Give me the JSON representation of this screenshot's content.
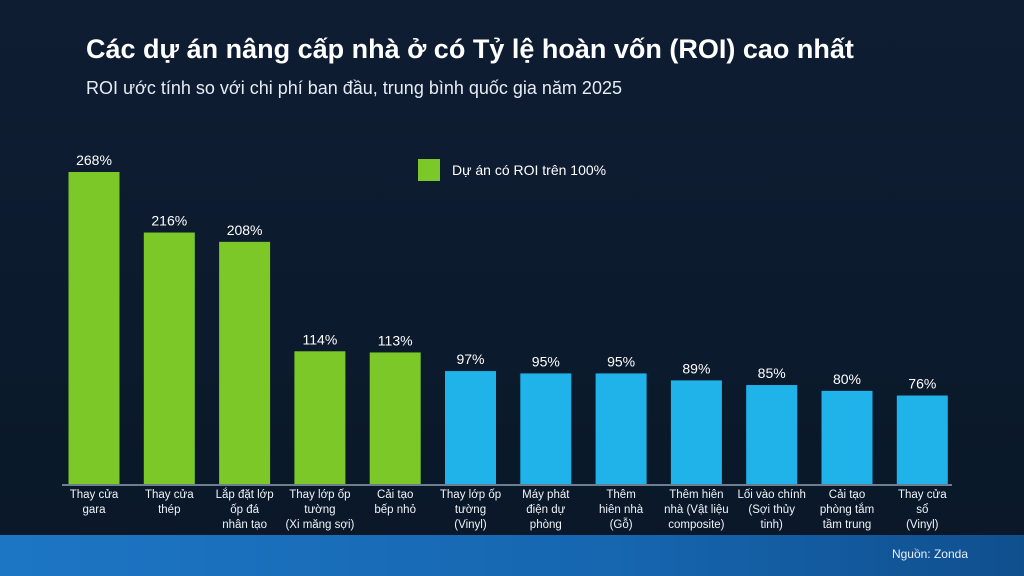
{
  "chart_data": {
    "type": "bar",
    "title": "Các dự án nâng cấp nhà ở có Tỷ lệ hoàn vốn (ROI) cao nhất",
    "subtitle": "ROI ước tính so với chi phí ban đầu, trung bình quốc gia năm 2025",
    "categories": [
      "Thay cửa\ngara",
      "Thay cửa\nthép",
      "Lắp đặt lớp\nốp đá\nnhân tạo",
      "Thay lớp ốp\ntường\n(Xi măng sợi)",
      "Cải tạo\nbếp nhỏ",
      "Thay lớp ốp\ntường\n(Vinyl)",
      "Máy phát\nđiện dự\nphòng",
      "Thêm\nhiên nhà\n(Gỗ)",
      "Thêm hiên\nnhà (Vật liệu\ncomposite)",
      "Lối vào chính\n(Sợi thủy\ntinh)",
      "Cải tạo\nphòng tắm\ntầm trung",
      "Thay cửa\nsổ\n(Vinyl)"
    ],
    "values": [
      268,
      216,
      208,
      114,
      113,
      97,
      95,
      95,
      89,
      85,
      80,
      76
    ],
    "value_labels": [
      "268%",
      "216%",
      "208%",
      "114%",
      "113%",
      "97%",
      "95%",
      "95%",
      "89%",
      "85%",
      "80%",
      "76%"
    ],
    "unit": "%",
    "ylim": [
      0,
      280
    ],
    "grid": false,
    "legend": {
      "label": "Dự án có ROI trên 100%",
      "position": "top-center"
    },
    "highlight_threshold": 100,
    "colors": {
      "above_100": "#7cc828",
      "other": "#1fb3ea"
    }
  },
  "source": "Nguồn: Zonda"
}
